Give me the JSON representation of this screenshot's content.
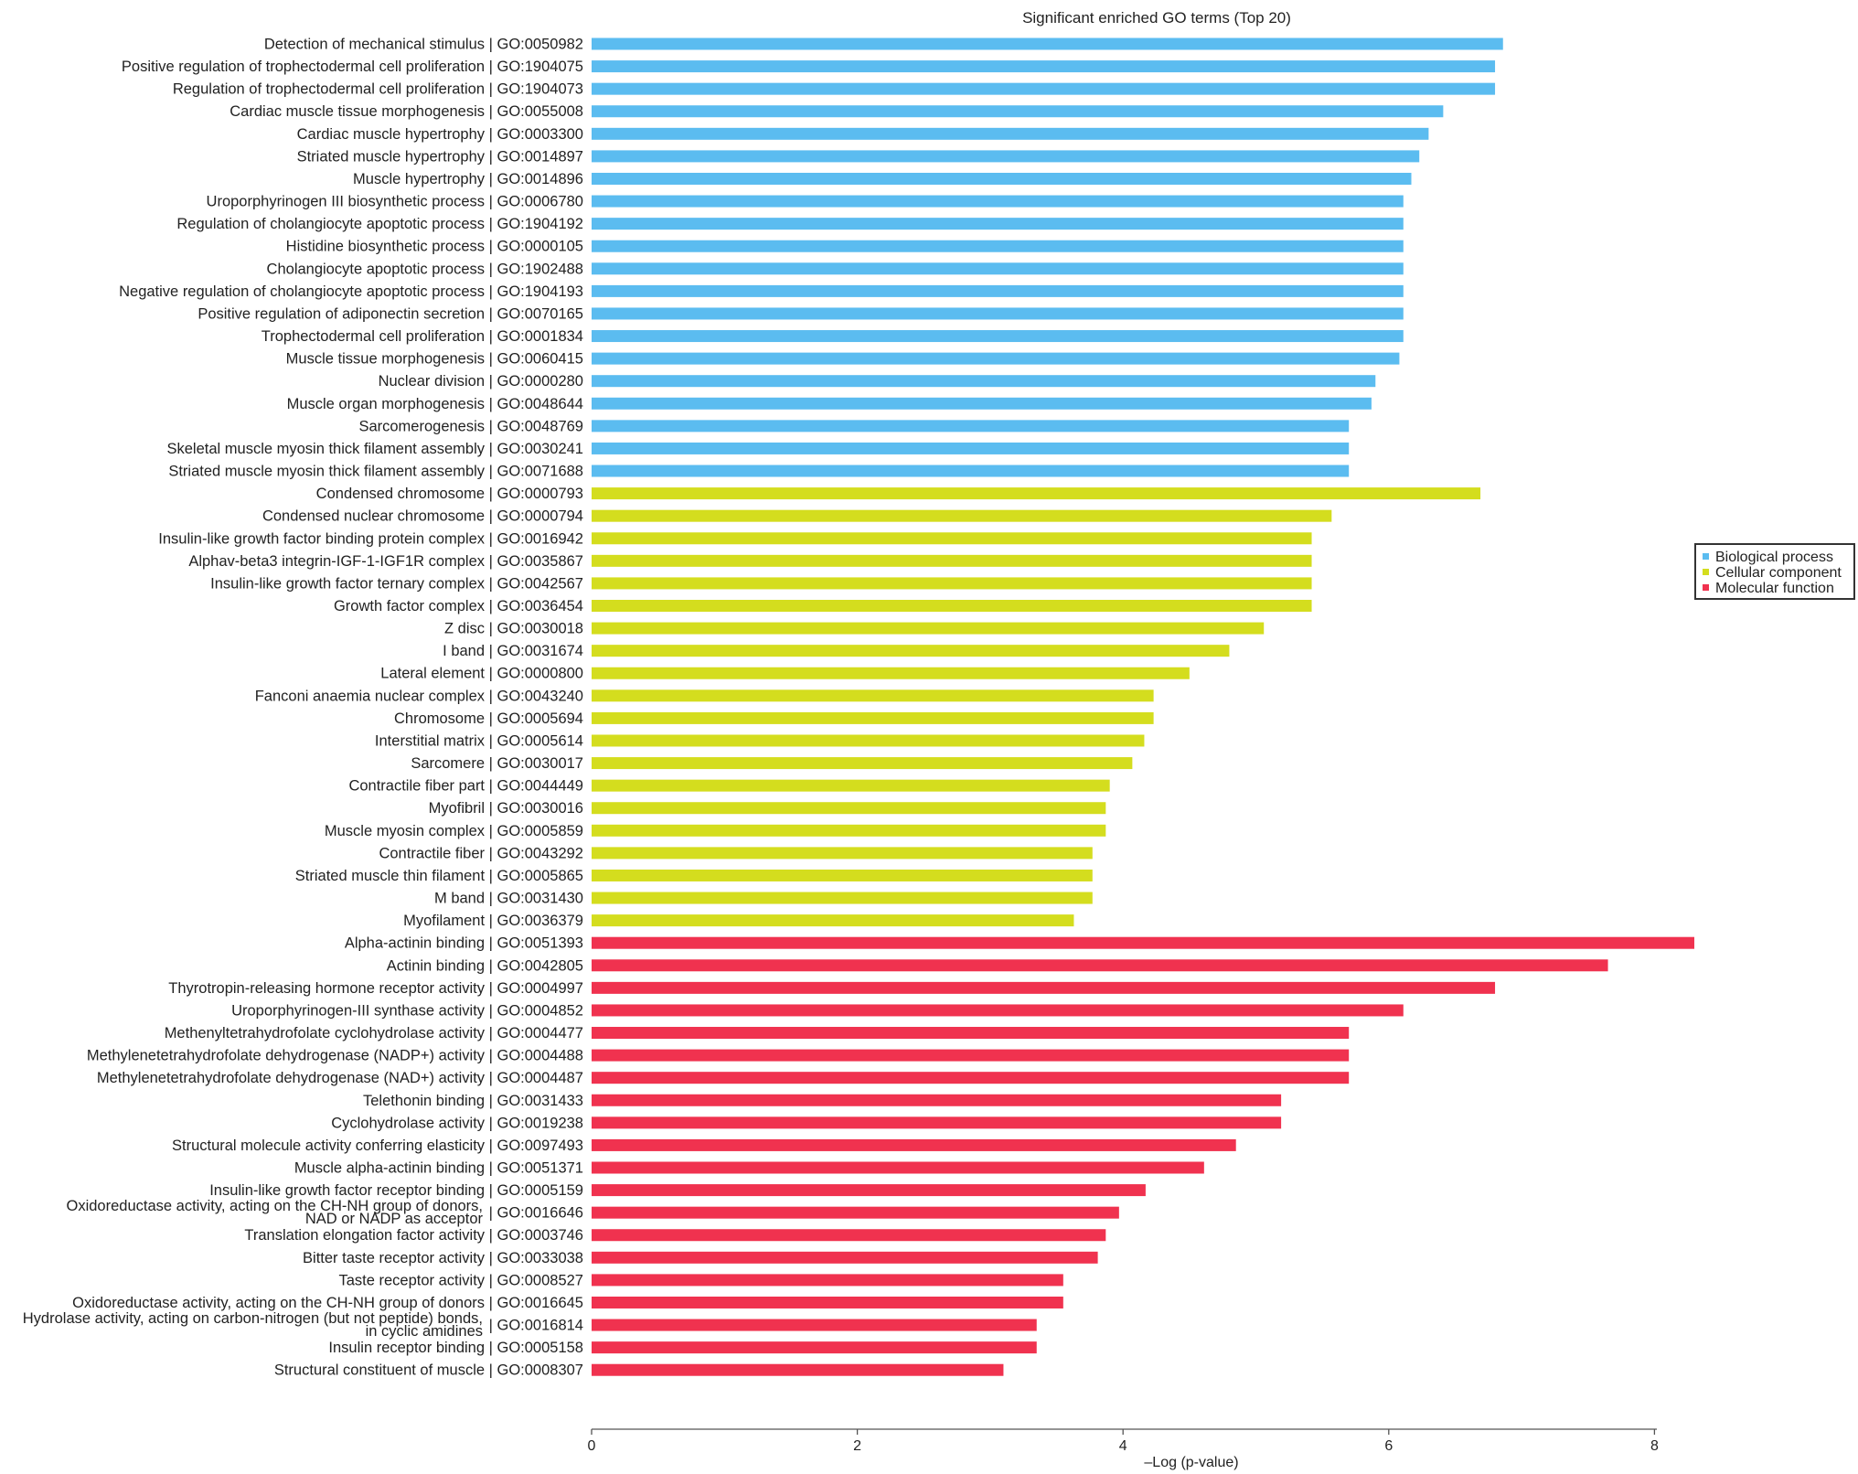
{
  "chart_data": {
    "type": "bar",
    "orientation": "horizontal",
    "title": "Significant enriched GO terms (Top 20)",
    "xlabel": "–Log (p-value)",
    "ylabel": "",
    "xlim": [
      0,
      8
    ],
    "xticks": [
      "0",
      "2",
      "4",
      "6",
      "8"
    ],
    "grid": false,
    "legend_position": "right",
    "legend": [
      {
        "name": "Biological process",
        "color": "#5bbcf0"
      },
      {
        "name": "Cellular component",
        "color": "#d4dd1e"
      },
      {
        "name": "Molecular function",
        "color": "#f0324f"
      }
    ],
    "bars": [
      {
        "label": "Detection of mechanical stimulus",
        "go": "GO:0050982",
        "cat": 0,
        "value": 6.86
      },
      {
        "label": "Positive regulation of trophectodermal cell proliferation",
        "go": "GO:1904075",
        "cat": 0,
        "value": 6.8
      },
      {
        "label": "Regulation of trophectodermal cell proliferation",
        "go": "GO:1904073",
        "cat": 0,
        "value": 6.8
      },
      {
        "label": "Cardiac muscle tissue morphogenesis",
        "go": "GO:0055008",
        "cat": 0,
        "value": 6.41
      },
      {
        "label": "Cardiac muscle hypertrophy",
        "go": "GO:0003300",
        "cat": 0,
        "value": 6.3
      },
      {
        "label": "Striated muscle hypertrophy",
        "go": "GO:0014897",
        "cat": 0,
        "value": 6.23
      },
      {
        "label": "Muscle hypertrophy",
        "go": "GO:0014896",
        "cat": 0,
        "value": 6.17
      },
      {
        "label": "Uroporphyrinogen III biosynthetic process",
        "go": "GO:0006780",
        "cat": 0,
        "value": 6.11
      },
      {
        "label": "Regulation of cholangiocyte apoptotic process",
        "go": "GO:1904192",
        "cat": 0,
        "value": 6.11
      },
      {
        "label": "Histidine biosynthetic process",
        "go": "GO:0000105",
        "cat": 0,
        "value": 6.11
      },
      {
        "label": "Cholangiocyte apoptotic process",
        "go": "GO:1902488",
        "cat": 0,
        "value": 6.11
      },
      {
        "label": "Negative regulation of cholangiocyte apoptotic process",
        "go": "GO:1904193",
        "cat": 0,
        "value": 6.11
      },
      {
        "label": "Positive regulation of adiponectin secretion",
        "go": "GO:0070165",
        "cat": 0,
        "value": 6.11
      },
      {
        "label": "Trophectodermal cell proliferation",
        "go": "GO:0001834",
        "cat": 0,
        "value": 6.11
      },
      {
        "label": "Muscle tissue morphogenesis",
        "go": "GO:0060415",
        "cat": 0,
        "value": 6.08
      },
      {
        "label": "Nuclear division",
        "go": "GO:0000280",
        "cat": 0,
        "value": 5.9
      },
      {
        "label": "Muscle organ morphogenesis",
        "go": "GO:0048644",
        "cat": 0,
        "value": 5.87
      },
      {
        "label": "Sarcomerogenesis",
        "go": "GO:0048769",
        "cat": 0,
        "value": 5.7
      },
      {
        "label": "Skeletal muscle myosin thick filament assembly",
        "go": "GO:0030241",
        "cat": 0,
        "value": 5.7
      },
      {
        "label": "Striated muscle myosin thick filament assembly",
        "go": "GO:0071688",
        "cat": 0,
        "value": 5.7
      },
      {
        "label": "Condensed chromosome",
        "go": "GO:0000793",
        "cat": 1,
        "value": 6.69
      },
      {
        "label": "Condensed nuclear chromosome",
        "go": "GO:0000794",
        "cat": 1,
        "value": 5.57
      },
      {
        "label": "Insulin-like growth factor binding protein complex",
        "go": "GO:0016942",
        "cat": 1,
        "value": 5.42
      },
      {
        "label": "Alphav-beta3 integrin-IGF-1-IGF1R complex",
        "go": "GO:0035867",
        "cat": 1,
        "value": 5.42
      },
      {
        "label": "Insulin-like growth factor ternary complex",
        "go": "GO:0042567",
        "cat": 1,
        "value": 5.42
      },
      {
        "label": "Growth factor complex",
        "go": "GO:0036454",
        "cat": 1,
        "value": 5.42
      },
      {
        "label": "Z disc",
        "go": "GO:0030018",
        "cat": 1,
        "value": 5.06
      },
      {
        "label": "I band",
        "go": "GO:0031674",
        "cat": 1,
        "value": 4.8
      },
      {
        "label": "Lateral element",
        "go": "GO:0000800",
        "cat": 1,
        "value": 4.5
      },
      {
        "label": "Fanconi anaemia nuclear complex",
        "go": "GO:0043240",
        "cat": 1,
        "value": 4.23
      },
      {
        "label": "Chromosome",
        "go": "GO:0005694",
        "cat": 1,
        "value": 4.23
      },
      {
        "label": "Interstitial matrix",
        "go": "GO:0005614",
        "cat": 1,
        "value": 4.16
      },
      {
        "label": "Sarcomere",
        "go": "GO:0030017",
        "cat": 1,
        "value": 4.07
      },
      {
        "label": "Contractile fiber part",
        "go": "GO:0044449",
        "cat": 1,
        "value": 3.9
      },
      {
        "label": "Myofibril",
        "go": "GO:0030016",
        "cat": 1,
        "value": 3.87
      },
      {
        "label": "Muscle myosin complex",
        "go": "GO:0005859",
        "cat": 1,
        "value": 3.87
      },
      {
        "label": "Contractile fiber",
        "go": "GO:0043292",
        "cat": 1,
        "value": 3.77
      },
      {
        "label": "Striated muscle thin filament",
        "go": "GO:0005865",
        "cat": 1,
        "value": 3.77
      },
      {
        "label": "M band",
        "go": "GO:0031430",
        "cat": 1,
        "value": 3.77
      },
      {
        "label": "Myofilament",
        "go": "GO:0036379",
        "cat": 1,
        "value": 3.63
      },
      {
        "label": "Alpha-actinin binding",
        "go": "GO:0051393",
        "cat": 2,
        "value": 8.3
      },
      {
        "label": "Actinin binding",
        "go": "GO:0042805",
        "cat": 2,
        "value": 7.65
      },
      {
        "label": "Thyrotropin-releasing hormone receptor activity",
        "go": "GO:0004997",
        "cat": 2,
        "value": 6.8
      },
      {
        "label": "Uroporphyrinogen-III synthase activity",
        "go": "GO:0004852",
        "cat": 2,
        "value": 6.11
      },
      {
        "label": "Methenyltetrahydrofolate cyclohydrolase activity",
        "go": "GO:0004477",
        "cat": 2,
        "value": 5.7
      },
      {
        "label": "Methylenetetrahydrofolate dehydrogenase (NADP+) activity",
        "go": "GO:0004488",
        "cat": 2,
        "value": 5.7
      },
      {
        "label": "Methylenetetrahydrofolate dehydrogenase (NAD+) activity",
        "go": "GO:0004487",
        "cat": 2,
        "value": 5.7
      },
      {
        "label": "Telethonin binding",
        "go": "GO:0031433",
        "cat": 2,
        "value": 5.19
      },
      {
        "label": "Cyclohydrolase activity",
        "go": "GO:0019238",
        "cat": 2,
        "value": 5.19
      },
      {
        "label": "Structural molecule activity conferring elasticity",
        "go": "GO:0097493",
        "cat": 2,
        "value": 4.85
      },
      {
        "label": "Muscle alpha-actinin binding",
        "go": "GO:0051371",
        "cat": 2,
        "value": 4.61
      },
      {
        "label": "Insulin-like growth factor receptor binding",
        "go": "GO:0005159",
        "cat": 2,
        "value": 4.17
      },
      {
        "label": "Oxidoreductase activity, acting on the CH-NH group of donors,",
        "label2": "NAD or NADP as acceptor",
        "go": "GO:0016646",
        "cat": 2,
        "value": 3.97
      },
      {
        "label": "Translation elongation factor activity",
        "go": "GO:0003746",
        "cat": 2,
        "value": 3.87
      },
      {
        "label": "Bitter taste receptor activity",
        "go": "GO:0033038",
        "cat": 2,
        "value": 3.81
      },
      {
        "label": "Taste receptor activity",
        "go": "GO:0008527",
        "cat": 2,
        "value": 3.55
      },
      {
        "label": "Oxidoreductase activity, acting on the CH-NH group of donors",
        "go": "GO:0016645",
        "cat": 2,
        "value": 3.55
      },
      {
        "label": "Hydrolase activity, acting on carbon-nitrogen (but not peptide) bonds,",
        "label2": "in cyclic amidines",
        "go": "GO:0016814",
        "cat": 2,
        "value": 3.35
      },
      {
        "label": "Insulin receptor binding",
        "go": "GO:0005158",
        "cat": 2,
        "value": 3.35
      },
      {
        "label": "Structural constituent of muscle",
        "go": "GO:0008307",
        "cat": 2,
        "value": 3.1
      }
    ]
  }
}
